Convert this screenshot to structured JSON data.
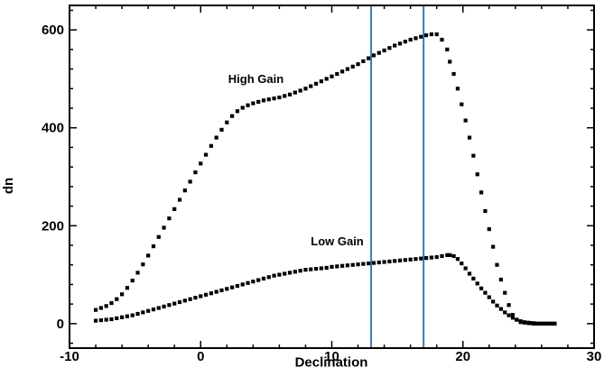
{
  "chart_data": {
    "type": "scatter",
    "title": "",
    "xlabel": "Declination",
    "ylabel": "dn",
    "xlim": [
      -10,
      30
    ],
    "ylim": [
      -50,
      650
    ],
    "xticks": [
      -10,
      0,
      10,
      20,
      30
    ],
    "yticks": [
      0,
      200,
      400,
      600
    ],
    "xtick_labels": [
      "-10",
      "0",
      "10",
      "20",
      "30"
    ],
    "ytick_labels": [
      "0",
      "200",
      "400",
      "600"
    ],
    "grid": false,
    "marker_color": "#000000",
    "vline_color": "#3b78b7",
    "vlines": [
      13,
      17
    ],
    "annotations": [
      {
        "text": "High Gain",
        "x": 2.1,
        "y": 492
      },
      {
        "text": "Low Gain",
        "x": 8.4,
        "y": 160
      }
    ],
    "series": [
      {
        "x": [
          -8.0,
          -7.6,
          -7.2,
          -6.8,
          -6.4,
          -6.0,
          -5.6,
          -5.2,
          -4.8,
          -4.4,
          -4.0,
          -3.6,
          -3.2,
          -2.8,
          -2.4,
          -2.0,
          -1.6,
          -1.2,
          -0.8,
          -0.4,
          0.0,
          0.4,
          0.8,
          1.2,
          1.6,
          2.0,
          2.4,
          2.8,
          3.2,
          3.6,
          4.0,
          4.4,
          4.8,
          5.2,
          5.6,
          6.0,
          6.4,
          6.8,
          7.2,
          7.6,
          8.0,
          8.4,
          8.8,
          9.2,
          9.6,
          10.0,
          10.4,
          10.8,
          11.2,
          11.6,
          12.0,
          12.4,
          12.8,
          13.2,
          13.6,
          14.0,
          14.4,
          14.8,
          15.2,
          15.6,
          16.0,
          16.4,
          16.8,
          17.2,
          17.6,
          18.0,
          18.4,
          18.8,
          19.0,
          19.3,
          19.6,
          19.9,
          20.2,
          20.5,
          20.8,
          21.1,
          21.4,
          21.7,
          22.0,
          22.3,
          22.6,
          22.9,
          23.2,
          23.5,
          23.8,
          24.1,
          24.4,
          24.7,
          25.0,
          25.2,
          25.4,
          25.6,
          25.8,
          26.0,
          26.2,
          26.4,
          26.6,
          26.8,
          27.0
        ],
        "y": [
          28,
          32,
          36,
          42,
          50,
          60,
          73,
          88,
          104,
          121,
          139,
          158,
          177,
          196,
          215,
          234,
          253,
          272,
          290,
          309,
          327,
          345,
          363,
          380,
          396,
          411,
          424,
          434,
          441,
          446,
          450,
          453,
          456,
          458,
          460,
          462,
          465,
          468,
          472,
          476,
          480,
          485,
          490,
          495,
          500,
          505,
          510,
          515,
          520,
          525,
          530,
          536,
          542,
          548,
          553,
          558,
          563,
          568,
          572,
          576,
          580,
          583,
          586,
          589,
          591,
          591,
          580,
          560,
          535,
          510,
          480,
          448,
          415,
          380,
          343,
          305,
          268,
          230,
          193,
          157,
          120,
          90,
          63,
          38,
          18,
          8,
          3,
          2,
          1,
          1,
          0,
          0,
          0,
          0,
          0,
          0,
          0,
          0,
          0
        ]
      },
      {
        "x": [
          -8.0,
          -7.6,
          -7.2,
          -6.8,
          -6.4,
          -6.0,
          -5.6,
          -5.2,
          -4.8,
          -4.4,
          -4.0,
          -3.6,
          -3.2,
          -2.8,
          -2.4,
          -2.0,
          -1.6,
          -1.2,
          -0.8,
          -0.4,
          0.0,
          0.4,
          0.8,
          1.2,
          1.6,
          2.0,
          2.4,
          2.8,
          3.2,
          3.6,
          4.0,
          4.4,
          4.8,
          5.2,
          5.6,
          6.0,
          6.4,
          6.8,
          7.2,
          7.6,
          8.0,
          8.4,
          8.8,
          9.2,
          9.6,
          10.0,
          10.4,
          10.8,
          11.2,
          11.6,
          12.0,
          12.4,
          12.8,
          13.2,
          13.6,
          14.0,
          14.4,
          14.8,
          15.2,
          15.6,
          16.0,
          16.4,
          16.8,
          17.2,
          17.6,
          18.0,
          18.4,
          18.8,
          19.0,
          19.3,
          19.6,
          19.9,
          20.2,
          20.5,
          20.8,
          21.1,
          21.4,
          21.7,
          22.0,
          22.3,
          22.6,
          22.9,
          23.2,
          23.5,
          23.8,
          24.1,
          24.4,
          24.7,
          25.0,
          25.2,
          25.4,
          25.6,
          25.8,
          26.0,
          26.2,
          26.4,
          26.6,
          26.8,
          27.0
        ],
        "y": [
          6,
          7,
          8,
          9,
          11,
          13,
          15,
          17,
          20,
          23,
          26,
          29,
          32,
          35,
          38,
          41,
          44,
          47,
          50,
          53,
          56,
          59,
          62,
          65,
          68,
          71,
          74,
          77,
          80,
          83,
          86,
          89,
          92,
          95,
          98,
          100,
          102,
          104,
          106,
          108,
          110,
          111,
          112,
          113,
          114,
          116,
          117,
          118,
          119,
          120,
          121,
          122,
          123,
          124,
          125,
          126,
          127,
          128,
          129,
          130,
          131,
          132,
          133,
          134,
          135,
          136,
          138,
          140,
          140,
          138,
          132,
          123,
          113,
          102,
          92,
          82,
          72,
          63,
          54,
          45,
          37,
          30,
          23,
          17,
          12,
          8,
          5,
          3,
          2,
          1,
          1,
          0,
          0,
          0,
          0,
          0,
          0,
          0,
          0
        ]
      }
    ]
  }
}
